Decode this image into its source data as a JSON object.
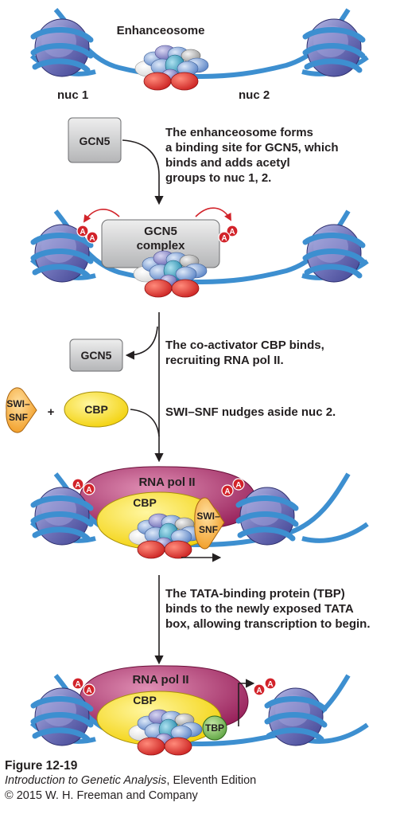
{
  "stage1": {
    "enhanceosome_label": "Enhanceosome",
    "nuc1_label": "nuc 1",
    "nuc2_label": "nuc 2"
  },
  "step1": {
    "gcn5_label": "GCN5",
    "text_lines": [
      "The enhanceosome forms",
      "a binding site for GCN5, which",
      "binds and adds acetyl",
      "groups to nuc 1, 2."
    ]
  },
  "stage2": {
    "complex_lines": [
      "GCN5",
      "complex"
    ],
    "acetyl_label": "A"
  },
  "step2": {
    "gcn5_label": "GCN5",
    "cbp_label": "CBP",
    "swisnf_lines": [
      "SWI–",
      "SNF"
    ],
    "plus": "+",
    "text_lines_a": [
      "The co-activator CBP binds,",
      "recruiting RNA pol II."
    ],
    "text_lines_b": [
      "SWI–SNF nudges aside nuc 2."
    ]
  },
  "stage3": {
    "rnapol_label": "RNA pol II",
    "cbp_label": "CBP",
    "swisnf_lines": [
      "SWI–",
      "SNF"
    ],
    "acetyl_label": "A"
  },
  "step3": {
    "text_lines": [
      "The TATA-binding protein (TBP)",
      "binds to the newly exposed TATA",
      "box, allowing transcription to begin."
    ]
  },
  "stage4": {
    "rnapol_label": "RNA pol II",
    "cbp_label": "CBP",
    "tbp_label": "TBP",
    "acetyl_label": "A"
  },
  "caption": {
    "figure": "Figure 12-19",
    "book_title": "Introduction to Genetic Analysis",
    "edition": ", Eleventh Edition",
    "copyright": "© 2015 W. H. Freeman and Company"
  },
  "colors": {
    "nucleosome": "#6f72b8",
    "dna": "#3d8fd0",
    "gcn5_box": "#c8c9ca",
    "cbp": "#f5d80f",
    "rnapol": "#a8265e",
    "swisnf": "#f4a020",
    "red_protein": "#d42a2a",
    "tbp": "#67ad45",
    "arrow": "#231f20",
    "acetyl_arrow": "#d2232a"
  }
}
